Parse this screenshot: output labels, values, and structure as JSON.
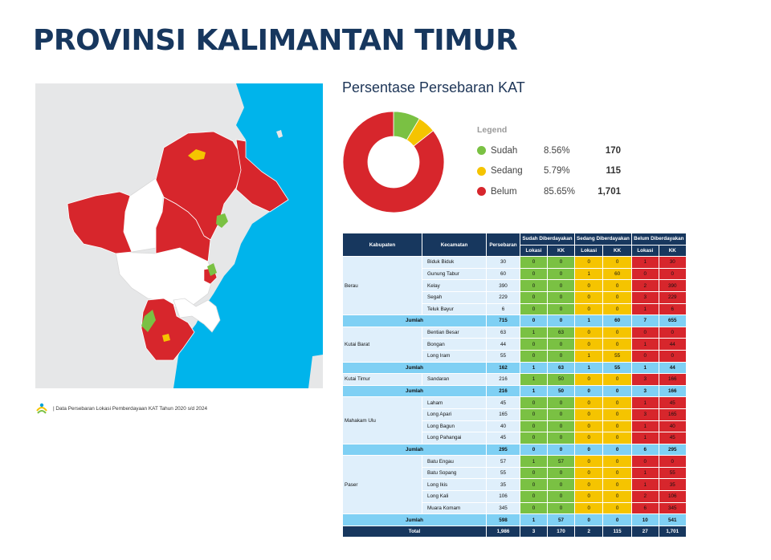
{
  "title": "PROVINSI KALIMANTAN TIMUR",
  "source_note": "| Data Persebaran Lokasi Pemberdayaan KAT Tahun 2020 s/d 2024",
  "colors": {
    "sudah": "#7ac143",
    "sedang": "#f5c400",
    "belum": "#d7262c",
    "sea": "#00b4eb",
    "land": "#e6e7e8",
    "navy": "#17375e"
  },
  "chart": {
    "title": "Persentase Persebaran KAT",
    "legend_title": "Legend",
    "legend": [
      {
        "label": "Sudah",
        "pct": "8.56%",
        "kk": "170",
        "color": "#7ac143"
      },
      {
        "label": "Sedang",
        "pct": "5.79%",
        "kk": "115",
        "color": "#f5c400"
      },
      {
        "label": "Belum",
        "pct": "85.65%",
        "kk": "1,701",
        "color": "#d7262c"
      }
    ]
  },
  "chart_data": {
    "type": "pie",
    "categories": [
      "Sudah",
      "Sedang",
      "Belum"
    ],
    "values": [
      8.56,
      5.79,
      85.65
    ],
    "title": "Persentase Persebaran KAT"
  },
  "table": {
    "headers": {
      "kabupaten": "Kabupaten",
      "kecamatan": "Kecamatan",
      "persebaran": "Persebaran",
      "sudah": "Sudah Diberdayakan",
      "sedang": "Sedang Diberdayakan",
      "belum": "Belum Diberdayakan",
      "lokasi": "Lokasi",
      "kk": "KK"
    },
    "groups": [
      {
        "kabupaten": "Berau",
        "rows": [
          [
            "Biduk Biduk",
            "30",
            "0",
            "0",
            "0",
            "0",
            "1",
            "30"
          ],
          [
            "Gunung Tabur",
            "60",
            "0",
            "0",
            "1",
            "60",
            "0",
            "0"
          ],
          [
            "Kelay",
            "390",
            "0",
            "0",
            "0",
            "0",
            "2",
            "390"
          ],
          [
            "Segah",
            "229",
            "0",
            "0",
            "0",
            "0",
            "3",
            "229"
          ],
          [
            "Teluk Bayur",
            "6",
            "0",
            "0",
            "0",
            "0",
            "1",
            "6"
          ]
        ],
        "jumlah": [
          "Jumlah",
          "715",
          "0",
          "0",
          "1",
          "60",
          "7",
          "655"
        ]
      },
      {
        "kabupaten": "Kutai Barat",
        "rows": [
          [
            "Bentian Besar",
            "63",
            "1",
            "63",
            "0",
            "0",
            "0",
            "0"
          ],
          [
            "Bongan",
            "44",
            "0",
            "0",
            "0",
            "0",
            "1",
            "44"
          ],
          [
            "Long Iram",
            "55",
            "0",
            "0",
            "1",
            "55",
            "0",
            "0"
          ]
        ],
        "jumlah": [
          "Jumlah",
          "162",
          "1",
          "63",
          "1",
          "55",
          "1",
          "44"
        ]
      },
      {
        "kabupaten": "Kutai Timur",
        "rows": [
          [
            "Sandaran",
            "216",
            "1",
            "50",
            "0",
            "0",
            "3",
            "166"
          ]
        ],
        "jumlah": [
          "Jumlah",
          "216",
          "1",
          "50",
          "0",
          "0",
          "3",
          "166"
        ]
      },
      {
        "kabupaten": "Mahakam Ulu",
        "rows": [
          [
            "Laham",
            "45",
            "0",
            "0",
            "0",
            "0",
            "1",
            "45"
          ],
          [
            "Long Apari",
            "165",
            "0",
            "0",
            "0",
            "0",
            "3",
            "165"
          ],
          [
            "Long Bagun",
            "40",
            "0",
            "0",
            "0",
            "0",
            "1",
            "40"
          ],
          [
            "Long Pahangai",
            "45",
            "0",
            "0",
            "0",
            "0",
            "1",
            "45"
          ]
        ],
        "jumlah": [
          "Jumlah",
          "295",
          "0",
          "0",
          "0",
          "0",
          "6",
          "295"
        ]
      },
      {
        "kabupaten": "Paser",
        "rows": [
          [
            "Batu Engau",
            "57",
            "1",
            "57",
            "0",
            "0",
            "0",
            "0"
          ],
          [
            "Batu Sopang",
            "55",
            "0",
            "0",
            "0",
            "0",
            "1",
            "55"
          ],
          [
            "Long Ikis",
            "35",
            "0",
            "0",
            "0",
            "0",
            "1",
            "35"
          ],
          [
            "Long Kali",
            "106",
            "0",
            "0",
            "0",
            "0",
            "2",
            "106"
          ],
          [
            "Muara Komam",
            "345",
            "0",
            "0",
            "0",
            "0",
            "6",
            "345"
          ]
        ],
        "jumlah": [
          "Jumlah",
          "598",
          "1",
          "57",
          "0",
          "0",
          "10",
          "541"
        ]
      }
    ],
    "total": [
      "Total",
      "1,986",
      "3",
      "170",
      "2",
      "115",
      "27",
      "1,701"
    ]
  }
}
